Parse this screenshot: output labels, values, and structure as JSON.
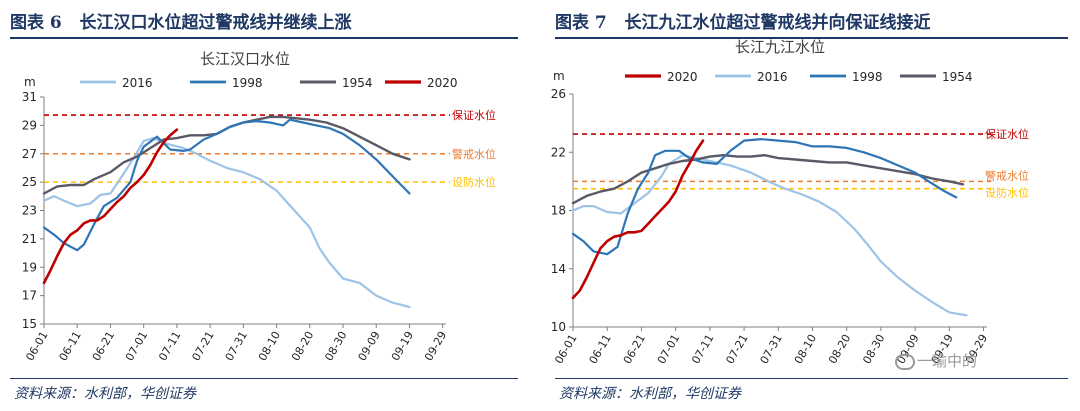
{
  "panels": [
    {
      "fig_label": "图表 6",
      "fig_title": "长江汉口水位超过警戒线并继续上涨",
      "source": "资料来源：水利部，华创证券"
    },
    {
      "fig_label": "图表 7",
      "fig_title": "长江九江水位超过警戒线并向保证线接近",
      "source": "资料来源：水利部，华创证券"
    }
  ],
  "watermark": "一瑜中的",
  "chart_data": [
    {
      "type": "line",
      "title": "长江汉口水位",
      "ylabel": "m",
      "ylim": [
        15,
        31
      ],
      "yticks": [
        15,
        17,
        19,
        21,
        23,
        25,
        27,
        29,
        31
      ],
      "xlim": [
        0,
        121
      ],
      "xtick_positions": [
        0,
        10,
        20,
        30,
        40,
        50,
        60,
        70,
        80,
        90,
        100,
        110,
        120
      ],
      "xtick_labels": [
        "06-01",
        "06-11",
        "06-21",
        "07-01",
        "07-11",
        "07-21",
        "07-31",
        "08-10",
        "08-20",
        "08-30",
        "09-09",
        "09-19",
        "09-29"
      ],
      "legend": [
        "2016",
        "1998",
        "1954",
        "2020"
      ],
      "series": [
        {
          "name": "2016",
          "color": "#9dc3e6",
          "width": 2.2,
          "points": [
            [
              0,
              23.7
            ],
            [
              3,
              24.0
            ],
            [
              6,
              23.7
            ],
            [
              10,
              23.3
            ],
            [
              14,
              23.5
            ],
            [
              17,
              24.1
            ],
            [
              20,
              24.2
            ],
            [
              24,
              25.6
            ],
            [
              27,
              26.7
            ],
            [
              30,
              27.9
            ],
            [
              33,
              28.1
            ],
            [
              37,
              27.7
            ],
            [
              42,
              27.4
            ],
            [
              46,
              27.0
            ],
            [
              50,
              26.5
            ],
            [
              55,
              26.0
            ],
            [
              60,
              25.7
            ],
            [
              65,
              25.2
            ],
            [
              70,
              24.4
            ],
            [
              75,
              23.1
            ],
            [
              80,
              21.8
            ],
            [
              83,
              20.3
            ],
            [
              86,
              19.3
            ],
            [
              90,
              18.2
            ],
            [
              95,
              17.9
            ],
            [
              100,
              17.0
            ],
            [
              105,
              16.5
            ],
            [
              110,
              16.2
            ]
          ]
        },
        {
          "name": "1998",
          "color": "#2e75b6",
          "width": 2.2,
          "points": [
            [
              0,
              21.8
            ],
            [
              3,
              21.3
            ],
            [
              6,
              20.7
            ],
            [
              10,
              20.2
            ],
            [
              12,
              20.6
            ],
            [
              15,
              22.0
            ],
            [
              18,
              23.3
            ],
            [
              22,
              23.9
            ],
            [
              26,
              25.0
            ],
            [
              28,
              26.5
            ],
            [
              30,
              27.5
            ],
            [
              34,
              28.2
            ],
            [
              38,
              27.3
            ],
            [
              42,
              27.2
            ],
            [
              44,
              27.3
            ],
            [
              48,
              28.0
            ],
            [
              52,
              28.4
            ],
            [
              56,
              28.9
            ],
            [
              60,
              29.2
            ],
            [
              64,
              29.3
            ],
            [
              68,
              29.2
            ],
            [
              72,
              29.0
            ],
            [
              74,
              29.4
            ],
            [
              78,
              29.2
            ],
            [
              82,
              29.0
            ],
            [
              86,
              28.8
            ],
            [
              90,
              28.4
            ],
            [
              95,
              27.6
            ],
            [
              100,
              26.6
            ],
            [
              105,
              25.4
            ],
            [
              110,
              24.2
            ]
          ]
        },
        {
          "name": "1954",
          "color": "#595968",
          "width": 2.4,
          "points": [
            [
              0,
              24.2
            ],
            [
              4,
              24.7
            ],
            [
              8,
              24.8
            ],
            [
              12,
              24.8
            ],
            [
              15,
              25.2
            ],
            [
              20,
              25.7
            ],
            [
              24,
              26.4
            ],
            [
              28,
              26.8
            ],
            [
              32,
              27.4
            ],
            [
              36,
              28.0
            ],
            [
              40,
              28.1
            ],
            [
              44,
              28.3
            ],
            [
              48,
              28.3
            ],
            [
              52,
              28.4
            ],
            [
              56,
              28.9
            ],
            [
              60,
              29.2
            ],
            [
              64,
              29.4
            ],
            [
              68,
              29.6
            ],
            [
              72,
              29.6
            ],
            [
              76,
              29.5
            ],
            [
              80,
              29.4
            ],
            [
              85,
              29.2
            ],
            [
              90,
              28.8
            ],
            [
              95,
              28.2
            ],
            [
              100,
              27.6
            ],
            [
              105,
              27.0
            ],
            [
              110,
              26.6
            ]
          ]
        },
        {
          "name": "2020",
          "color": "#c00000",
          "width": 2.6,
          "points": [
            [
              0,
              17.9
            ],
            [
              2,
              18.8
            ],
            [
              4,
              19.8
            ],
            [
              6,
              20.7
            ],
            [
              8,
              21.3
            ],
            [
              10,
              21.6
            ],
            [
              12,
              22.1
            ],
            [
              14,
              22.3
            ],
            [
              16,
              22.3
            ],
            [
              18,
              22.6
            ],
            [
              20,
              23.1
            ],
            [
              22,
              23.6
            ],
            [
              24,
              24.0
            ],
            [
              26,
              24.6
            ],
            [
              28,
              25.0
            ],
            [
              30,
              25.5
            ],
            [
              32,
              26.2
            ],
            [
              34,
              27.1
            ],
            [
              36,
              27.8
            ],
            [
              38,
              28.3
            ],
            [
              40,
              28.7
            ]
          ]
        }
      ],
      "reference_lines": [
        {
          "label": "保证水位",
          "value": 29.73,
          "color": "#c00000"
        },
        {
          "label": "警戒水位",
          "value": 27.0,
          "color": "#ed7d31"
        },
        {
          "label": "设防水位",
          "value": 25.0,
          "color": "#ffc000"
        }
      ]
    },
    {
      "type": "line",
      "title": "长江九江水位",
      "ylabel": "m",
      "ylim": [
        10,
        26
      ],
      "yticks": [
        10,
        14,
        18,
        22,
        26
      ],
      "xlim": [
        0,
        121
      ],
      "xtick_positions": [
        0,
        10,
        20,
        30,
        40,
        50,
        60,
        70,
        80,
        90,
        100,
        110,
        120
      ],
      "xtick_labels": [
        "06-01",
        "06-11",
        "06-21",
        "07-01",
        "07-11",
        "07-21",
        "07-31",
        "08-10",
        "08-20",
        "08-30",
        "09-09",
        "09-19",
        "09-29"
      ],
      "legend": [
        "2020",
        "2016",
        "1998",
        "1954"
      ],
      "series": [
        {
          "name": "2016",
          "color": "#9dc3e6",
          "width": 2.2,
          "points": [
            [
              0,
              18.0
            ],
            [
              3,
              18.3
            ],
            [
              6,
              18.3
            ],
            [
              10,
              17.9
            ],
            [
              14,
              17.8
            ],
            [
              18,
              18.5
            ],
            [
              22,
              19.2
            ],
            [
              26,
              20.4
            ],
            [
              28,
              21.2
            ],
            [
              32,
              21.8
            ],
            [
              36,
              21.6
            ],
            [
              40,
              21.4
            ],
            [
              46,
              21.1
            ],
            [
              52,
              20.6
            ],
            [
              58,
              19.9
            ],
            [
              62,
              19.5
            ],
            [
              67,
              19.1
            ],
            [
              72,
              18.6
            ],
            [
              77,
              17.9
            ],
            [
              82,
              16.8
            ],
            [
              86,
              15.7
            ],
            [
              90,
              14.5
            ],
            [
              95,
              13.4
            ],
            [
              100,
              12.5
            ],
            [
              105,
              11.7
            ],
            [
              110,
              11.0
            ],
            [
              115,
              10.8
            ]
          ]
        },
        {
          "name": "1998",
          "color": "#2e75b6",
          "width": 2.2,
          "points": [
            [
              0,
              16.4
            ],
            [
              3,
              15.9
            ],
            [
              6,
              15.2
            ],
            [
              10,
              15.0
            ],
            [
              13,
              15.5
            ],
            [
              16,
              17.8
            ],
            [
              19,
              19.5
            ],
            [
              22,
              20.6
            ],
            [
              24,
              21.8
            ],
            [
              27,
              22.1
            ],
            [
              31,
              22.1
            ],
            [
              34,
              21.6
            ],
            [
              38,
              21.3
            ],
            [
              42,
              21.2
            ],
            [
              46,
              22.1
            ],
            [
              50,
              22.8
            ],
            [
              55,
              22.9
            ],
            [
              60,
              22.8
            ],
            [
              65,
              22.7
            ],
            [
              70,
              22.4
            ],
            [
              75,
              22.4
            ],
            [
              80,
              22.3
            ],
            [
              85,
              22.0
            ],
            [
              90,
              21.6
            ],
            [
              95,
              21.1
            ],
            [
              100,
              20.6
            ],
            [
              104,
              20.0
            ],
            [
              108,
              19.4
            ],
            [
              112,
              18.9
            ]
          ]
        },
        {
          "name": "1954",
          "color": "#595968",
          "width": 2.4,
          "points": [
            [
              0,
              18.5
            ],
            [
              4,
              19.0
            ],
            [
              8,
              19.3
            ],
            [
              12,
              19.5
            ],
            [
              16,
              20.0
            ],
            [
              20,
              20.6
            ],
            [
              24,
              20.9
            ],
            [
              28,
              21.2
            ],
            [
              32,
              21.4
            ],
            [
              36,
              21.5
            ],
            [
              40,
              21.7
            ],
            [
              44,
              21.8
            ],
            [
              48,
              21.7
            ],
            [
              52,
              21.7
            ],
            [
              56,
              21.8
            ],
            [
              60,
              21.6
            ],
            [
              65,
              21.5
            ],
            [
              70,
              21.4
            ],
            [
              75,
              21.3
            ],
            [
              80,
              21.3
            ],
            [
              85,
              21.1
            ],
            [
              90,
              20.9
            ],
            [
              95,
              20.7
            ],
            [
              100,
              20.5
            ],
            [
              105,
              20.2
            ],
            [
              110,
              20.0
            ],
            [
              114,
              19.8
            ]
          ]
        },
        {
          "name": "2020",
          "color": "#c00000",
          "width": 2.6,
          "points": [
            [
              0,
              12.0
            ],
            [
              2,
              12.5
            ],
            [
              4,
              13.4
            ],
            [
              6,
              14.4
            ],
            [
              8,
              15.4
            ],
            [
              10,
              15.9
            ],
            [
              12,
              16.2
            ],
            [
              14,
              16.3
            ],
            [
              16,
              16.5
            ],
            [
              18,
              16.5
            ],
            [
              20,
              16.6
            ],
            [
              22,
              17.1
            ],
            [
              24,
              17.6
            ],
            [
              26,
              18.1
            ],
            [
              28,
              18.6
            ],
            [
              30,
              19.3
            ],
            [
              32,
              20.4
            ],
            [
              34,
              21.2
            ],
            [
              36,
              22.1
            ],
            [
              38,
              22.8
            ]
          ]
        }
      ],
      "reference_lines": [
        {
          "label": "保证水位",
          "value": 23.25,
          "color": "#c00000"
        },
        {
          "label": "警戒水位",
          "value": 20.0,
          "color": "#ed7d31"
        },
        {
          "label": "设防水位",
          "value": 19.5,
          "color": "#ffc000"
        }
      ]
    }
  ]
}
